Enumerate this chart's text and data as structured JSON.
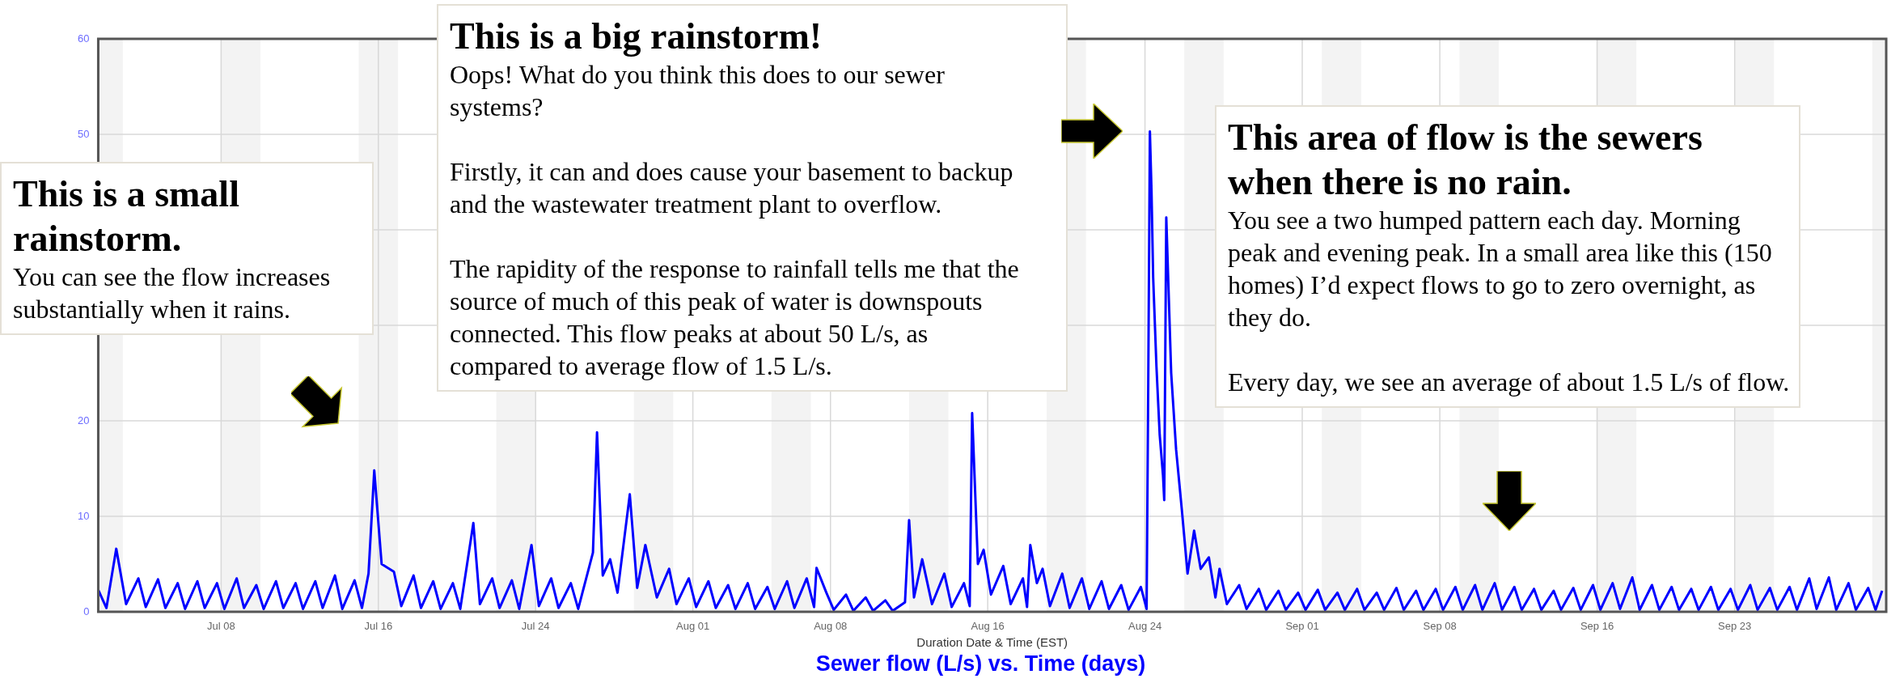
{
  "chart_data": {
    "type": "line",
    "title": "Sewer flow (L/s) vs. Time (days)",
    "xlabel": "Duration Date & Time (EST)",
    "annotations": [
      "This is a small rainstorm.",
      "You can see the flow increases substantially when it rains.",
      "This is a big rainstorm!",
      "Oops! What do you think this does to our sewer systems?\n\nFirstly, it can and does cause your basement to backup and the wastewater treatment plant to overflow.\n\nThe rapidity of the response to rainfall tells me that the source of much of this peak of water is downspouts connected. This flow peaks at about 50 L/s, as compared to average flow of 1.5 L/s.",
      "This area of flow is the sewers when there is no rain.",
      "You see a two humped pattern each day. Morning peak and evening peak. In a small area like this (150 homes) I’d expect flows to go to zero overnight, as they do.\n\nEvery day, we see an average of about 1.5 L/s of flow."
    ],
    "xlim": [
      "--07-01T18:00",
      "--09-30T17:00"
    ],
    "xticks": [
      {
        "value": "--07-08",
        "label": "Jul 08"
      },
      {
        "value": "--07-16",
        "label": "Jul 16"
      },
      {
        "value": "--07-24",
        "label": "Jul 24"
      },
      {
        "value": "--08-01",
        "label": "Aug 01"
      },
      {
        "value": "--08-08",
        "label": "Aug 08"
      },
      {
        "value": "--08-16",
        "label": "Aug 16"
      },
      {
        "value": "--08-24",
        "label": "Aug 24"
      },
      {
        "value": "--09-01",
        "label": "Sep 01"
      },
      {
        "value": "--09-08",
        "label": "Sep 08"
      },
      {
        "value": "--09-16",
        "label": "Sep 16"
      },
      {
        "value": "--09-23",
        "label": "Sep 23"
      }
    ],
    "ylim": [
      0,
      60
    ],
    "yticks": [
      0,
      10,
      20,
      {
        "value": 30,
        "label": null
      },
      {
        "value": 40,
        "label": null
      },
      50,
      60
    ],
    "grid": true,
    "legend": false,
    "marker": "none",
    "line_style": "solid",
    "bands": [
      {
        "axis": "x",
        "from": "--07-01T18:00",
        "to": "--07-03",
        "color": "#f3f3f3"
      },
      {
        "axis": "x",
        "from": "--07-08",
        "to": "--07-10",
        "color": "#f3f3f3"
      },
      {
        "axis": "x",
        "from": "--07-15",
        "to": "--07-17",
        "color": "#f3f3f3"
      },
      {
        "axis": "x",
        "from": "--07-22",
        "to": "--07-24",
        "color": "#f3f3f3"
      },
      {
        "axis": "x",
        "from": "--07-29",
        "to": "--07-31",
        "color": "#f3f3f3"
      },
      {
        "axis": "x",
        "from": "--08-05",
        "to": "--08-07",
        "color": "#f3f3f3"
      },
      {
        "axis": "x",
        "from": "--08-12",
        "to": "--08-14",
        "color": "#f3f3f3"
      },
      {
        "axis": "x",
        "from": "--08-19",
        "to": "--08-21",
        "color": "#f3f3f3"
      },
      {
        "axis": "x",
        "from": "--08-26",
        "to": "--08-28",
        "color": "#f3f3f3"
      },
      {
        "axis": "x",
        "from": "--09-02",
        "to": "--09-04",
        "color": "#f3f3f3"
      },
      {
        "axis": "x",
        "from": "--09-09",
        "to": "--09-11",
        "color": "#f3f3f3"
      },
      {
        "axis": "x",
        "from": "--09-16",
        "to": "--09-18",
        "color": "#f3f3f3"
      },
      {
        "axis": "x",
        "from": "--09-23",
        "to": "--09-25",
        "color": "#f3f3f3"
      },
      {
        "axis": "x",
        "from": "--09-30",
        "to": "--09-30T17:00",
        "color": "#f3f3f3"
      }
    ],
    "series": [
      {
        "type": "line",
        "color": "#0000ff",
        "x": [
          "--07-01T18:00",
          "--07-02T04:00",
          "--07-02T16:00",
          "--07-03T04:00",
          "--07-03T19:00",
          "--07-04T04:00",
          "--07-04T19:00",
          "--07-05T04:00",
          "--07-05T19:00",
          "--07-06T04:00",
          "--07-06T19:00",
          "--07-07T04:00",
          "--07-07T19:00",
          "--07-08T04:00",
          "--07-08T19:00",
          "--07-09T04:00",
          "--07-09T19:00",
          "--07-10T04:00",
          "--07-10T19:00",
          "--07-11T04:00",
          "--07-11T19:00",
          "--07-12T04:00",
          "--07-12T19:00",
          "--07-13T04:00",
          "--07-13T19:00",
          "--07-14T04:00",
          "--07-14T19:00",
          "--07-15T04:00",
          "--07-15T12:00",
          "--07-15T19:00",
          "--07-16T04:00",
          "--07-16T19:00",
          "--07-17T04:00",
          "--07-17T19:00",
          "--07-18T04:00",
          "--07-18T19:00",
          "--07-19T04:00",
          "--07-19T19:00",
          "--07-20T04:00",
          "--07-20T20:00",
          "--07-21T04:00",
          "--07-21T19:00",
          "--07-22T04:00",
          "--07-22T19:00",
          "--07-23T04:00",
          "--07-23T19:00",
          "--07-24T04:00",
          "--07-24T19:00",
          "--07-25T04:00",
          "--07-25T19:00",
          "--07-26T04:00",
          "--07-26T22:00",
          "--07-27T03:00",
          "--07-27T10:00",
          "--07-27T19:00",
          "--07-28T04:00",
          "--07-28T19:00",
          "--07-29T04:00",
          "--07-29T14:00",
          "--07-30T04:00",
          "--07-30T19:00",
          "--07-31T04:00",
          "--07-31T19:00",
          "--08-01T04:00",
          "--08-01T19:00",
          "--08-02T04:00",
          "--08-02T19:00",
          "--08-03T04:00",
          "--08-03T19:00",
          "--08-04T04:00",
          "--08-04T19:00",
          "--08-05T04:00",
          "--08-05T19:00",
          "--08-06T04:00",
          "--08-06T19:00",
          "--08-07T04:00",
          "--08-07T07:00",
          "--08-07T19:00",
          "--08-08T04:00",
          "--08-08T19:00",
          "--08-09T04:00",
          "--08-09T19:00",
          "--08-10T04:00",
          "--08-10T19:00",
          "--08-11T04:00",
          "--08-11T19:00",
          "--08-12T00:00",
          "--08-12T06:00",
          "--08-12T16:00",
          "--08-13T04:00",
          "--08-13T19:00",
          "--08-14T04:00",
          "--08-14T19:00",
          "--08-15T02:00",
          "--08-15T05:00",
          "--08-15T12:00",
          "--08-15T19:00",
          "--08-16T04:00",
          "--08-16T19:00",
          "--08-17T04:00",
          "--08-17T19:00",
          "--08-18T00:00",
          "--08-18T04:00",
          "--08-18T12:00",
          "--08-18T19:00",
          "--08-19T04:00",
          "--08-19T19:00",
          "--08-20T04:00",
          "--08-20T19:00",
          "--08-21T04:00",
          "--08-21T19:00",
          "--08-22T04:00",
          "--08-22T19:00",
          "--08-23T04:00",
          "--08-23T19:00",
          "--08-24T02:00",
          "--08-24T04:00",
          "--08-24T06:00",
          "--08-24T08:00",
          "--08-24T10:00",
          "--08-24T14:00",
          "--08-24T18:00",
          "--08-24T22:00",
          "--08-24T23:30",
          "--08-25T02:00",
          "--08-25T08:00",
          "--08-25T14:00",
          "--08-25T21:00",
          "--08-26T04:00",
          "--08-26T12:00",
          "--08-26T20:00",
          "--08-27T06:00",
          "--08-27T14:00",
          "--08-27T19:00",
          "--08-28T04:00",
          "--08-28T19:00",
          "--08-29T04:00",
          "--08-29T19:00",
          "--08-30T04:00",
          "--08-30T19:00",
          "--08-31T04:00",
          "--08-31T19:00",
          "--09-01T04:00",
          "--09-01T19:00",
          "--09-02T04:00",
          "--09-02T19:00",
          "--09-03T04:00",
          "--09-03T19:00",
          "--09-04T04:00",
          "--09-04T19:00",
          "--09-05T04:00",
          "--09-05T19:00",
          "--09-06T04:00",
          "--09-06T19:00",
          "--09-07T04:00",
          "--09-07T19:00",
          "--09-08T04:00",
          "--09-08T19:00",
          "--09-09T04:00",
          "--09-09T19:00",
          "--09-10T04:00",
          "--09-10T19:00",
          "--09-11T04:00",
          "--09-11T19:00",
          "--09-12T04:00",
          "--09-12T19:00",
          "--09-13T04:00",
          "--09-13T19:00",
          "--09-14T04:00",
          "--09-14T19:00",
          "--09-15T04:00",
          "--09-15T19:00",
          "--09-16T04:00",
          "--09-16T19:00",
          "--09-17T04:00",
          "--09-17T19:00",
          "--09-18T04:00",
          "--09-18T19:00",
          "--09-19T04:00",
          "--09-19T19:00",
          "--09-20T04:00",
          "--09-20T19:00",
          "--09-21T04:00",
          "--09-21T19:00",
          "--09-22T04:00",
          "--09-22T19:00",
          "--09-23T04:00",
          "--09-23T19:00",
          "--09-24T04:00",
          "--09-24T19:00",
          "--09-25T04:00",
          "--09-25T19:00",
          "--09-26T04:00",
          "--09-26T19:00",
          "--09-27T04:00",
          "--09-27T19:00",
          "--09-28T04:00",
          "--09-28T19:00",
          "--09-29T04:00",
          "--09-29T19:00",
          "--09-30T04:00",
          "--09-30T12:00"
        ],
        "values": [
          2.3,
          0.4,
          6.6,
          0.8,
          3.5,
          0.5,
          3.4,
          0.4,
          3.0,
          0.3,
          3.2,
          0.4,
          3.0,
          0.3,
          3.5,
          0.4,
          2.8,
          0.3,
          3.2,
          0.4,
          3.0,
          0.3,
          3.2,
          0.4,
          3.8,
          0.3,
          3.3,
          0.4,
          4.0,
          14.8,
          5.0,
          4.2,
          0.6,
          3.8,
          0.4,
          3.2,
          0.3,
          3.0,
          0.3,
          9.3,
          0.8,
          3.5,
          0.4,
          3.3,
          0.3,
          7.0,
          0.6,
          3.5,
          0.4,
          3.0,
          0.3,
          6.2,
          18.8,
          3.8,
          5.5,
          2.0,
          12.3,
          2.5,
          7.0,
          1.5,
          4.5,
          0.8,
          3.5,
          0.5,
          3.2,
          0.4,
          2.8,
          0.3,
          3.0,
          0.3,
          2.6,
          0.3,
          3.2,
          0.4,
          3.5,
          0.5,
          4.6,
          2.0,
          0.2,
          1.8,
          0.1,
          1.5,
          0.1,
          1.2,
          0.1,
          1.0,
          9.6,
          1.5,
          5.5,
          0.8,
          4.0,
          0.5,
          3.0,
          0.6,
          20.8,
          5.0,
          6.5,
          1.8,
          4.8,
          0.8,
          3.5,
          0.5,
          7.0,
          3.0,
          4.5,
          0.6,
          4.0,
          0.4,
          3.5,
          0.3,
          3.2,
          0.3,
          2.8,
          0.2,
          2.6,
          0.3,
          24.0,
          50.3,
          44.0,
          35.0,
          25.7,
          18.5,
          14.3,
          11.7,
          41.3,
          25.0,
          17.0,
          10.7,
          4.0,
          8.5,
          4.5,
          5.7,
          1.5,
          4.5,
          0.8,
          2.8,
          0.3,
          2.4,
          0.2,
          2.2,
          0.2,
          2.0,
          0.2,
          2.3,
          0.2,
          2.0,
          0.2,
          2.4,
          0.2,
          2.0,
          0.2,
          2.5,
          0.2,
          2.2,
          0.2,
          2.4,
          0.2,
          2.6,
          0.2,
          2.8,
          0.2,
          3.0,
          0.2,
          2.6,
          0.2,
          2.4,
          0.2,
          2.2,
          0.2,
          2.5,
          0.2,
          2.8,
          0.2,
          3.0,
          0.3,
          3.6,
          0.2,
          2.8,
          0.2,
          2.6,
          0.2,
          2.4,
          0.2,
          2.6,
          0.2,
          2.4,
          0.2,
          2.8,
          0.2,
          2.5,
          0.2,
          2.6,
          0.2,
          3.5,
          0.3,
          3.6,
          0.2,
          3.0,
          0.2,
          2.5,
          0.2,
          2.2
        ]
      }
    ]
  }
}
